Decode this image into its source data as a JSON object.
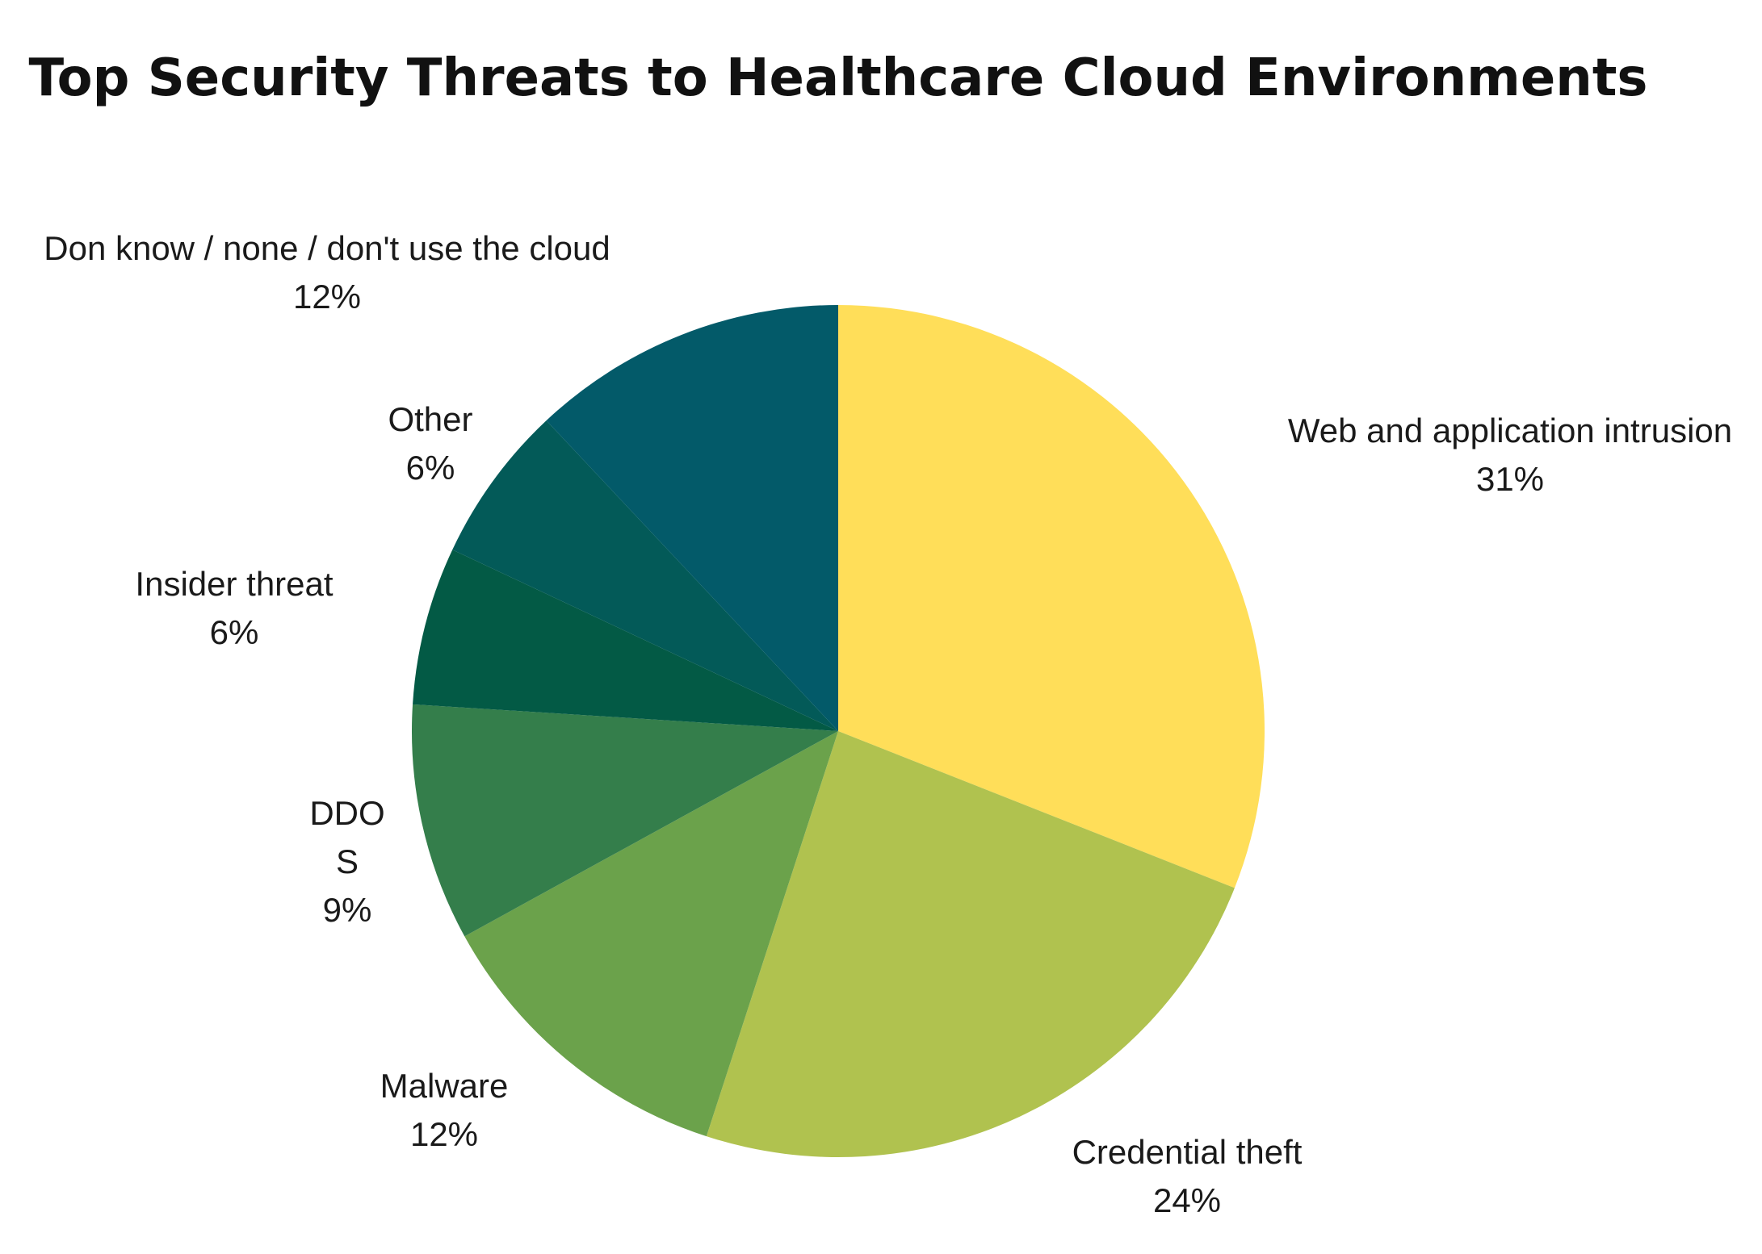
{
  "chart_data": {
    "type": "pie",
    "title": "Top Security Threats to Healthcare Cloud Environments",
    "slices": [
      {
        "label": "Web and application intrusion",
        "value": 31,
        "value_label": "31%",
        "color": "#FFDE59"
      },
      {
        "label": "Credential theft",
        "value": 24,
        "value_label": "24%",
        "color": "#B0C24F"
      },
      {
        "label": "Malware",
        "value": 12,
        "value_label": "12%",
        "color": "#6BA24B"
      },
      {
        "label": "DDOS",
        "label_lines": [
          "DDO",
          "S"
        ],
        "value": 9,
        "value_label": "9%",
        "color": "#347E4B"
      },
      {
        "label": "Insider threat",
        "value": 6,
        "value_label": "6%",
        "color": "#035A45"
      },
      {
        "label": "Other",
        "value": 6,
        "value_label": "6%",
        "color": "#035A58"
      },
      {
        "label": "Don know / none / don't use the cloud",
        "value": 12,
        "value_label": "12%",
        "color": "#035A69"
      }
    ],
    "legend": "none",
    "labels": "outside"
  }
}
